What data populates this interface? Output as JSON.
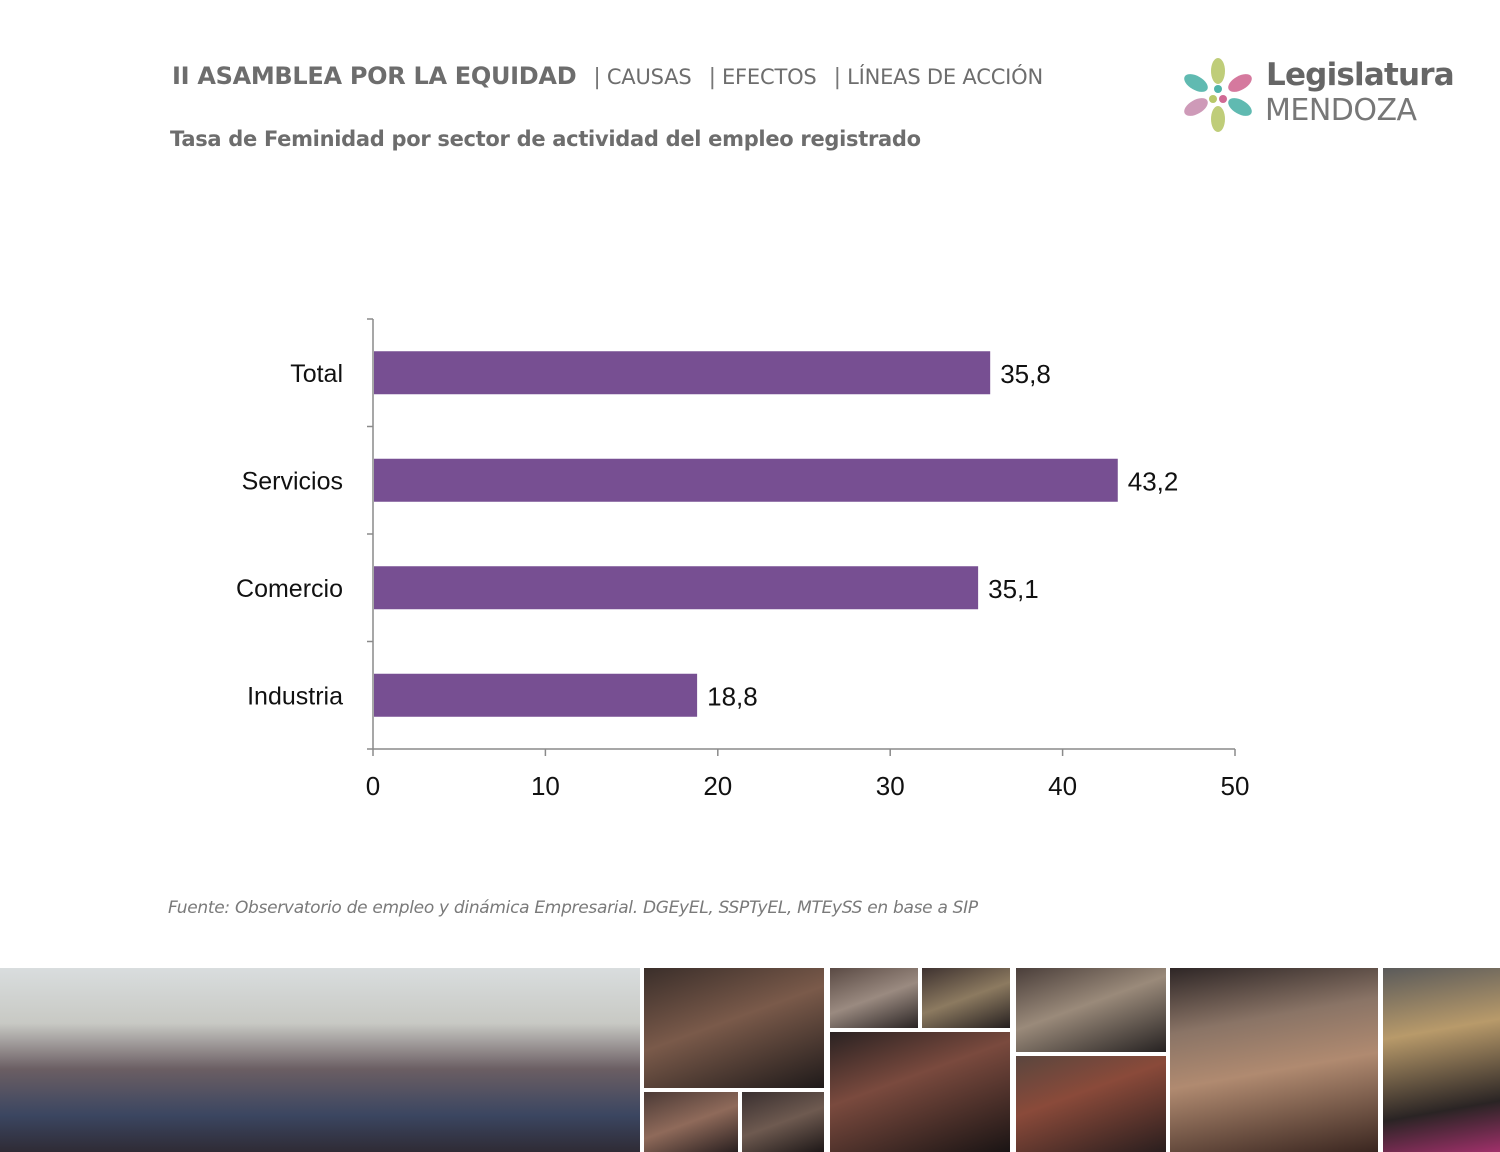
{
  "header": {
    "main": "II ASAMBLEA POR LA EQUIDAD",
    "items": [
      "CAUSAS",
      "EFECTOS",
      "LÍNEAS DE ACCIÓN"
    ],
    "separator": "|"
  },
  "logo": {
    "line1": "Legislatura",
    "line2": "MENDOZA",
    "colors": [
      "#4fb3a9",
      "#c98fb0",
      "#b8c86a",
      "#d06a94"
    ]
  },
  "subtitle": "Tasa de Feminidad por sector de actividad del empleo registrado",
  "chart_data": {
    "type": "bar",
    "orientation": "horizontal",
    "categories": [
      "Total",
      "Servicios",
      "Comercio",
      "Industria"
    ],
    "values": [
      35.8,
      43.2,
      35.1,
      18.8
    ],
    "value_labels": [
      "35,8",
      "43,2",
      "35,1",
      "18,8"
    ],
    "xlim": [
      0,
      50
    ],
    "xticks": [
      "0",
      "10",
      "20",
      "30",
      "40",
      "50"
    ],
    "bar_color": "#774f92",
    "grid": false,
    "legend": "none"
  },
  "source": "Fuente: Observatorio de empleo y dinámica Empresarial. DGEyEL, SSPTyEL, MTEySS en base a SIP",
  "photos": [
    "crowd-photo",
    "woman-speaking-photo",
    "legislators-photo",
    "woman-at-desk-photo",
    "two-legislators-photo",
    "chamber-photo",
    "group-photo",
    "woman-portrait-photo",
    "woman-headband-photo",
    "woman-sign-photo",
    "women-at-desks-photo",
    "woman-hat-photo"
  ]
}
